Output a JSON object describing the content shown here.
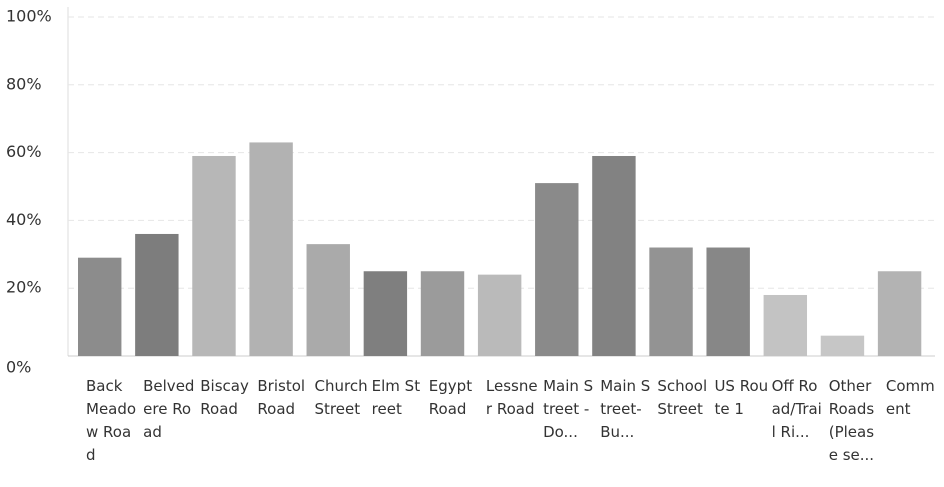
{
  "chart_data": {
    "type": "bar",
    "categories": [
      "Back Meadow Road",
      "Belvedere Road",
      "Biscay Road",
      "Bristol Road",
      "Church Street",
      "Elm Street",
      "Egypt Road",
      "Lessner Road",
      "Main Street - Do...",
      "Main Street- Bu...",
      "School Street",
      "US Route 1",
      "Off Road/Trail Ri...",
      "Other Roads (Please se...",
      "Comment"
    ],
    "values": [
      29,
      36,
      59,
      63,
      33,
      25,
      25,
      24,
      51,
      59,
      32,
      32,
      18,
      6,
      25
    ],
    "colors": [
      "#8c8c8c",
      "#7d7d7d",
      "#b7b7b7",
      "#b2b2b2",
      "#aaaaaa",
      "#7f7f7f",
      "#9b9b9b",
      "#bababa",
      "#8a8a8a",
      "#828282",
      "#939393",
      "#878787",
      "#c3c3c3",
      "#c6c6c6",
      "#b3b3b3"
    ],
    "ylim": [
      0,
      100
    ],
    "yticks": [
      {
        "value": 0,
        "label": "0%"
      },
      {
        "value": 20,
        "label": "20%"
      },
      {
        "value": 40,
        "label": "40%"
      },
      {
        "value": 60,
        "label": "60%"
      },
      {
        "value": 80,
        "label": "80%"
      },
      {
        "value": 100,
        "label": "100%"
      }
    ],
    "grid": true
  }
}
